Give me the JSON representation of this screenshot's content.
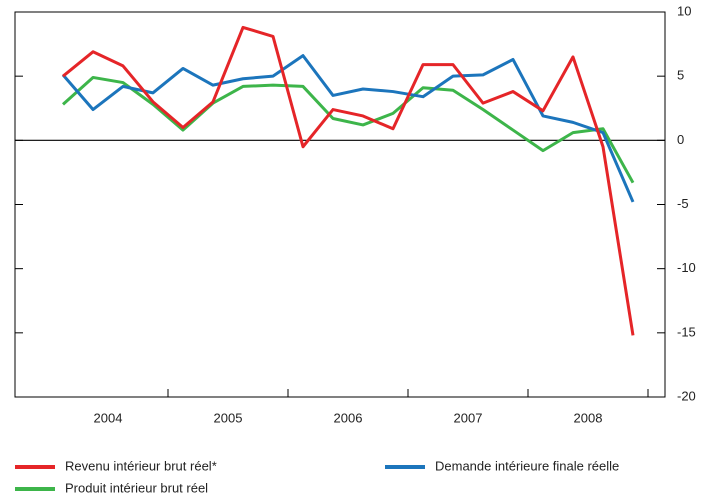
{
  "chart_data": {
    "type": "line",
    "categories": [
      null,
      "2004",
      null,
      null,
      null,
      "2005",
      null,
      null,
      null,
      "2006",
      null,
      null,
      null,
      "2007",
      null,
      null,
      null,
      "2008",
      null,
      null
    ],
    "series": [
      {
        "name": "Revenu intérieur brut réel*",
        "color": "#e52528",
        "values": [
          5.0,
          6.9,
          5.8,
          3.0,
          1.0,
          3.0,
          8.8,
          8.1,
          -0.5,
          2.4,
          1.9,
          0.9,
          5.9,
          5.9,
          2.9,
          3.8,
          2.3,
          6.5,
          -0.5,
          -15.2
        ]
      },
      {
        "name": "Demande intérieure finale réelle",
        "color": "#1c75bc",
        "values": [
          5.1,
          2.4,
          4.2,
          3.7,
          5.6,
          4.3,
          4.8,
          5.0,
          6.6,
          3.5,
          4.0,
          3.8,
          3.4,
          5.0,
          5.1,
          6.3,
          1.9,
          1.4,
          0.6,
          -4.8
        ]
      },
      {
        "name": "Produit intérieur brut réel",
        "color": "#3db54a",
        "values": [
          2.8,
          4.9,
          4.5,
          2.8,
          0.8,
          2.9,
          4.2,
          4.3,
          4.2,
          1.7,
          1.2,
          2.1,
          4.1,
          3.9,
          2.4,
          0.8,
          -0.8,
          0.6,
          0.9,
          -3.3
        ]
      }
    ],
    "ylim": [
      -20,
      10
    ],
    "yticks": [
      10,
      5,
      0,
      -5,
      -10,
      -15,
      -20
    ]
  }
}
